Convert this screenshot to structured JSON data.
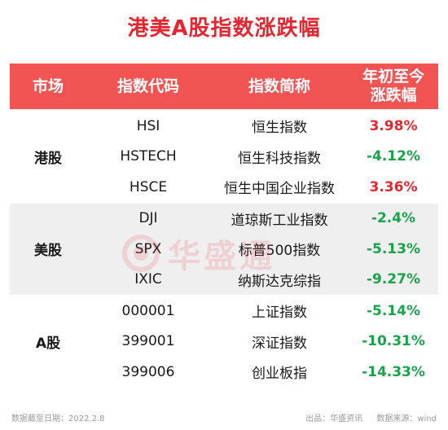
{
  "title": "港美A股指数涨跌幅",
  "colors": {
    "title": "#e8252f",
    "header_bg": "#f25353",
    "up": "#e8252f",
    "down": "#1aa34a",
    "shaded_row": "#efefef"
  },
  "header": {
    "market": "市场",
    "code": "指数代码",
    "name": "指数简称",
    "change_line1": "年初至今",
    "change_line2": "涨跌幅"
  },
  "groups": [
    {
      "market": "港股",
      "rows": [
        {
          "code": "HSI",
          "name": "恒生指数",
          "change": "3.98%",
          "direction": "up"
        },
        {
          "code": "HSTECH",
          "name": "恒生科技指数",
          "change": "-4.12%",
          "direction": "down"
        },
        {
          "code": "HSCE",
          "name": "恒生中国企业指数",
          "change": "3.36%",
          "direction": "up"
        }
      ]
    },
    {
      "market": "美股",
      "rows": [
        {
          "code": "DJI",
          "name": "道琼斯工业指数",
          "change": "-2.4%",
          "direction": "down"
        },
        {
          "code": "SPX",
          "name": "标普500指数",
          "change": "-5.13%",
          "direction": "down"
        },
        {
          "code": "IXIC",
          "name": "纳斯达克综指",
          "change": "-9.27%",
          "direction": "down"
        }
      ]
    },
    {
      "market": "A股",
      "rows": [
        {
          "code": "000001",
          "name": "上证指数",
          "change": "-5.14%",
          "direction": "down"
        },
        {
          "code": "399001",
          "name": "深证指数",
          "change": "-10.31%",
          "direction": "down"
        },
        {
          "code": "399006",
          "name": "创业板指",
          "change": "-14.33%",
          "direction": "down"
        }
      ]
    }
  ],
  "watermark": {
    "text": "华盛通",
    "icon": "huasheng-logo-icon"
  },
  "footer": {
    "date": "数据截至日期：2022.2.8",
    "publisher": "出品：华盛资讯",
    "source": "数据来源：wind"
  }
}
